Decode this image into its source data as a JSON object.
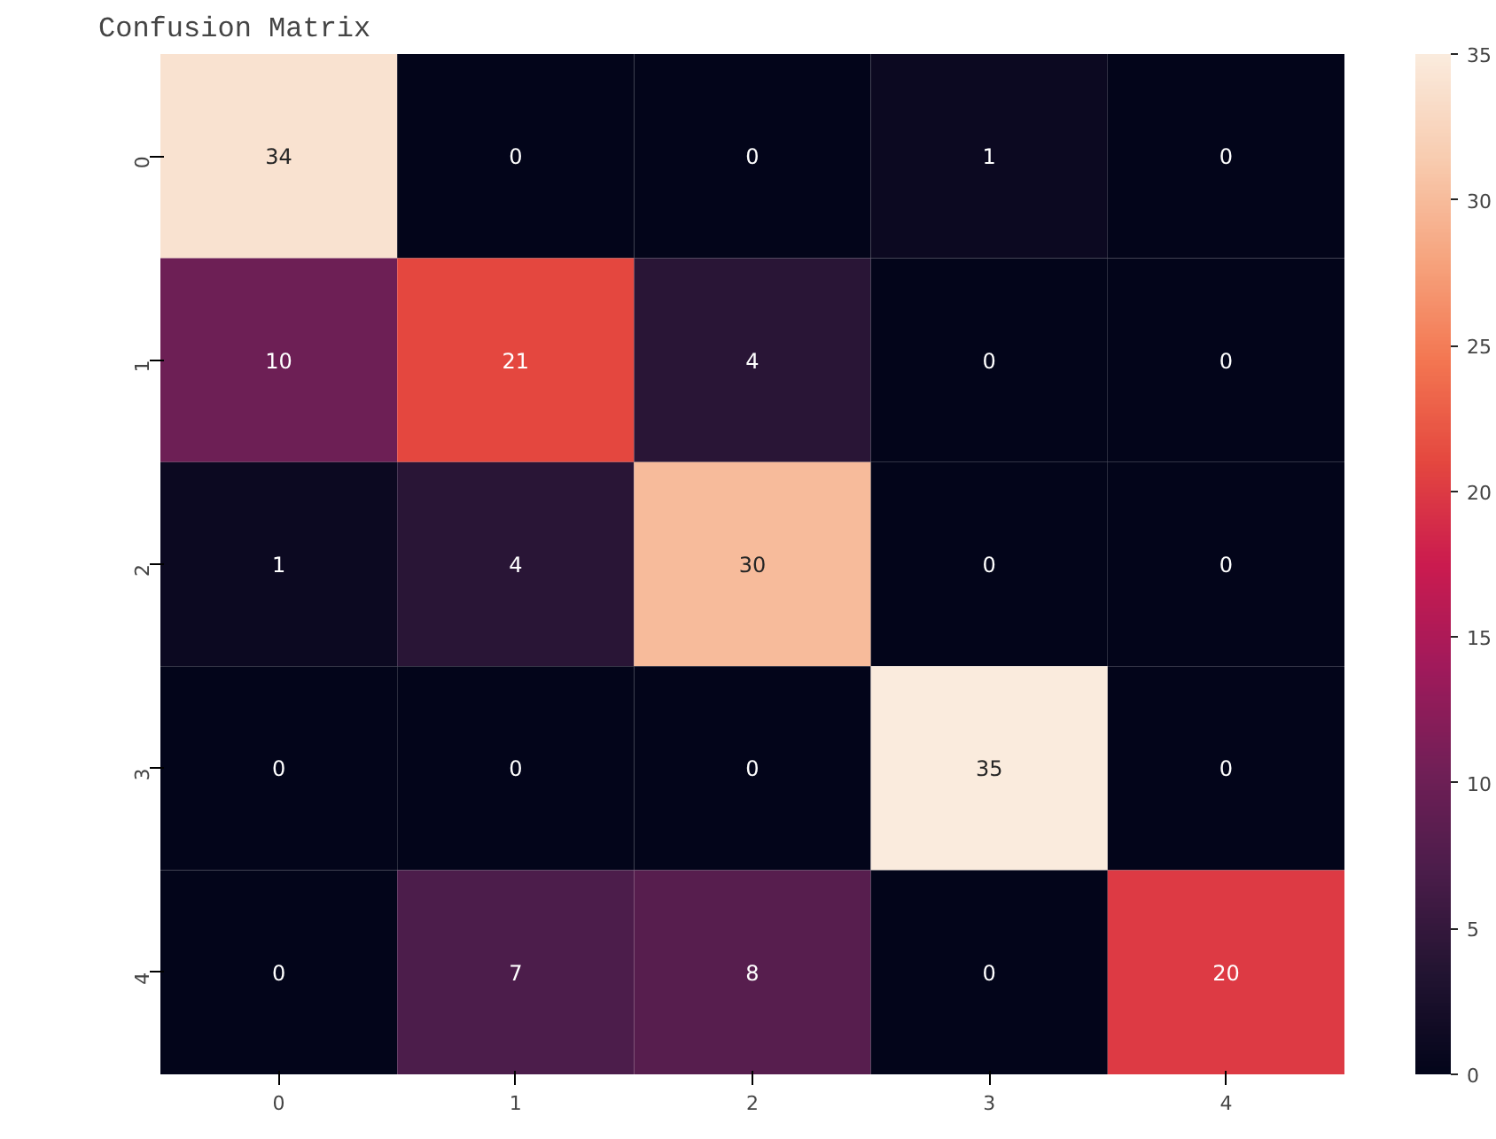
{
  "chart_data": {
    "type": "heatmap",
    "title": "Confusion Matrix",
    "categories": [
      "0",
      "1",
      "2",
      "3",
      "4"
    ],
    "y_categories": [
      "0",
      "1",
      "2",
      "3",
      "4"
    ],
    "cells": [
      [
        34,
        0,
        0,
        1,
        0
      ],
      [
        10,
        21,
        4,
        0,
        0
      ],
      [
        1,
        4,
        30,
        0,
        0
      ],
      [
        0,
        0,
        0,
        35,
        0
      ],
      [
        0,
        7,
        8,
        0,
        20
      ]
    ],
    "clim": [
      0,
      35
    ],
    "cticks": [
      0,
      5,
      10,
      15,
      20,
      25,
      30,
      35
    ],
    "data_labels": true
  }
}
